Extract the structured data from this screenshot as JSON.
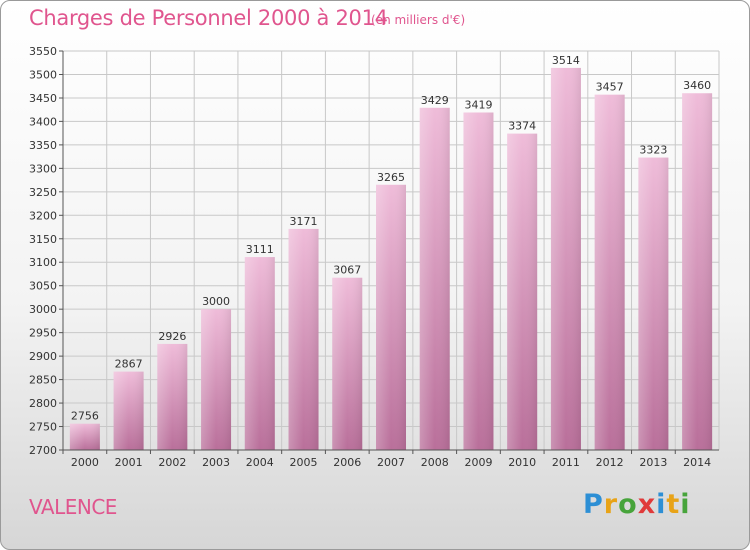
{
  "header": {
    "title": "Charges de Personnel 2000 à 2014",
    "subtitle": "(en milliers d'€)"
  },
  "footer": {
    "town": "VALENCE",
    "logo_text": "Proxiti"
  },
  "colors": {
    "bar_light": "#efbcd9",
    "bar_dark": "#b96f9a",
    "axis": "#555555",
    "grid": "#c8c8c8",
    "accent": "#e0558e"
  },
  "chart_data": {
    "type": "bar",
    "categories": [
      "2000",
      "2001",
      "2002",
      "2003",
      "2004",
      "2005",
      "2006",
      "2007",
      "2008",
      "2009",
      "2010",
      "2011",
      "2012",
      "2013",
      "2014"
    ],
    "values": [
      2756,
      2867,
      2926,
      3000,
      3111,
      3171,
      3067,
      3265,
      3429,
      3419,
      3374,
      3514,
      3457,
      3323,
      3460
    ],
    "ylim": [
      2700,
      3550
    ],
    "yticks": [
      2700,
      2750,
      2800,
      2850,
      2900,
      2950,
      3000,
      3050,
      3100,
      3150,
      3200,
      3250,
      3300,
      3350,
      3400,
      3450,
      3500,
      3550
    ],
    "grid": true,
    "data_labels": true
  }
}
